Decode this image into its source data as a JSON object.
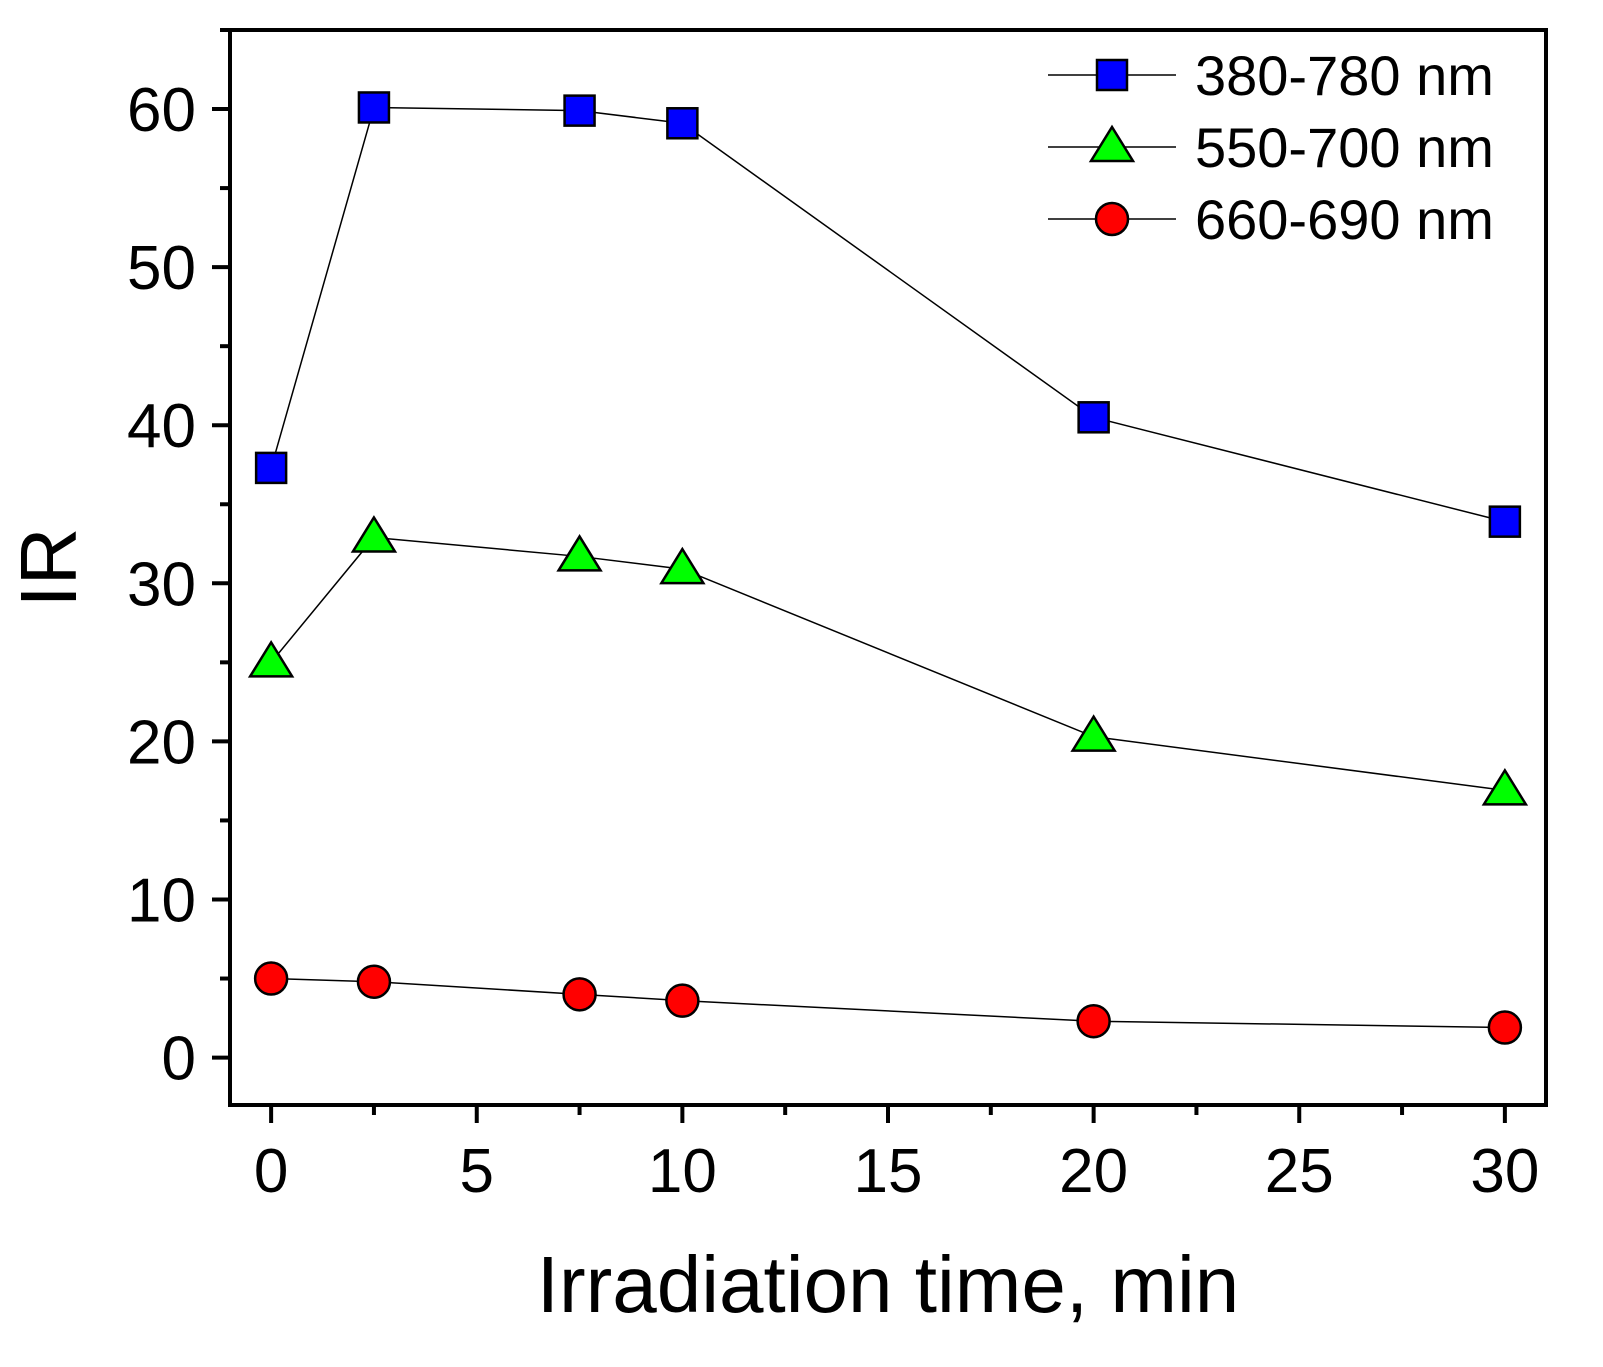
{
  "chart_data": {
    "type": "line",
    "title": "",
    "xlabel": "Irradiation time, min",
    "ylabel": "IR",
    "xlim": [
      -1,
      31
    ],
    "ylim": [
      -3,
      65
    ],
    "xticks": [
      0,
      5,
      10,
      15,
      20,
      25,
      30
    ],
    "xminor_step": 2.5,
    "yticks": [
      0,
      10,
      20,
      30,
      40,
      50,
      60
    ],
    "yminor_step": 5,
    "grid": false,
    "legend_position": "top-right",
    "x": [
      0,
      2.5,
      7.5,
      10,
      20,
      30
    ],
    "series": [
      {
        "name": "380-780 nm",
        "marker": "square",
        "color": "#0000ff",
        "values": [
          37.3,
          60.1,
          59.9,
          59.1,
          40.5,
          33.9
        ]
      },
      {
        "name": "550-700 nm",
        "marker": "triangle",
        "color": "#00ff00",
        "values": [
          25.0,
          32.9,
          31.7,
          30.9,
          20.3,
          16.9
        ]
      },
      {
        "name": "660-690 nm",
        "marker": "circle",
        "color": "#ff0000",
        "values": [
          5.0,
          4.8,
          4.0,
          3.6,
          2.3,
          1.9
        ]
      }
    ]
  }
}
